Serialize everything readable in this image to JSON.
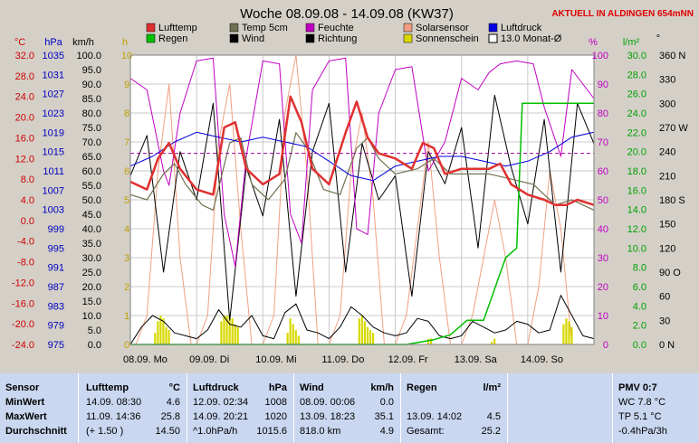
{
  "title": "Woche 08.09.08 - 14.09.08 (KW37)",
  "status": "AKTUELL IN ALDINGEN 654mNN",
  "colors": {
    "lufttemp": "#e03030",
    "temp5cm": "#707050",
    "feuchte": "#c000c0",
    "solar": "#f0a080",
    "luftdruck": "#0000e0",
    "regen": "#00c000",
    "wind": "#000000",
    "richtung": "#000000",
    "sonne": "#d8d800",
    "monat": "#a000a0"
  },
  "legend": [
    {
      "label": "Lufttemp",
      "color": "#e03030",
      "kind": "box"
    },
    {
      "label": "Temp 5cm",
      "color": "#707050",
      "kind": "box"
    },
    {
      "label": "Feuchte",
      "color": "#c000c0",
      "kind": "box"
    },
    {
      "label": "Solarsensor",
      "color": "#f0a080",
      "kind": "box"
    },
    {
      "label": "Luftdruck",
      "color": "#0000e0",
      "kind": "box"
    },
    {
      "label": "Regen",
      "color": "#00c000",
      "kind": "box"
    },
    {
      "label": "Wind",
      "color": "#000000",
      "kind": "box"
    },
    {
      "label": "Richtung",
      "color": "#000000",
      "kind": "box"
    },
    {
      "label": "Sonnenschein",
      "color": "#d8d800",
      "kind": "box"
    },
    {
      "label": "13.0 Monat-Ø",
      "color": "#000000",
      "kind": "outline"
    }
  ],
  "axes": {
    "temp": {
      "unit": "°C",
      "color": "#d00000",
      "ticks": [
        "32.0",
        "28.0",
        "24.0",
        "20.0",
        "16.0",
        "12.0",
        "8.0",
        "4.0",
        "0.0",
        "-4.0",
        "-8.0",
        "-12.0",
        "-16.0",
        "-20.0",
        "-24.0"
      ]
    },
    "pressure": {
      "unit": "hPa",
      "color": "#0000c0",
      "ticks": [
        "1035",
        "1031",
        "1027",
        "1023",
        "1019",
        "1015",
        "1011",
        "1007",
        "1003",
        "999",
        "995",
        "991",
        "987",
        "983",
        "979",
        "975"
      ]
    },
    "wind": {
      "unit": "km/h",
      "color": "#000000",
      "ticks": [
        "100.0",
        "95.0",
        "90.0",
        "85.0",
        "80.0",
        "75.0",
        "70.0",
        "65.0",
        "60.0",
        "55.0",
        "50.0",
        "45.0",
        "40.0",
        "35.0",
        "30.0",
        "25.0",
        "20.0",
        "15.0",
        "10.0",
        "5.0",
        "0.0"
      ]
    },
    "sun": {
      "unit": "h",
      "color": "#c0a000",
      "ticks": [
        "10",
        "9",
        "8",
        "7",
        "6",
        "5",
        "4",
        "3",
        "2",
        "1",
        "0"
      ]
    },
    "humidity": {
      "unit": "%",
      "color": "#c000c0",
      "ticks": [
        "100",
        "90",
        "80",
        "70",
        "60",
        "50",
        "40",
        "30",
        "20",
        "10",
        "0"
      ]
    },
    "rain": {
      "unit": "l/m²",
      "color": "#00a000",
      "ticks": [
        "30.0",
        "28.0",
        "26.0",
        "24.0",
        "22.0",
        "20.0",
        "18.0",
        "16.0",
        "14.0",
        "12.0",
        "10.0",
        "8.0",
        "6.0",
        "4.0",
        "2.0",
        "0.0"
      ]
    },
    "direction": {
      "unit": "°",
      "color": "#000000",
      "ticks": [
        "360 N",
        "330",
        "300",
        "270 W",
        "240",
        "210",
        "180 S",
        "150",
        "120",
        "90 O",
        "60",
        "30",
        "0 N"
      ]
    }
  },
  "days": [
    "08.09. Mo",
    "09.09. Di",
    "10.09. Mi",
    "11.09. Do",
    "12.09. Fr",
    "13.09. Sa",
    "14.09. So"
  ],
  "chart_data": {
    "type": "line",
    "title": "Woche 08.09.08 - 14.09.08 (KW37)",
    "x_unit": "hours since 08.09. 00:00",
    "xlim": [
      0,
      168
    ],
    "series": [
      {
        "name": "Lufttemp",
        "axis": "temp",
        "x": [
          0,
          6,
          10,
          14,
          18,
          24,
          30,
          34,
          38,
          42,
          48,
          54,
          58,
          62,
          66,
          72,
          78,
          82,
          86,
          90,
          96,
          102,
          106,
          110,
          114,
          120,
          126,
          130,
          134,
          138,
          144,
          150,
          154,
          158,
          162,
          168
        ],
        "values": [
          7.5,
          6,
          12,
          15,
          10,
          6,
          5,
          18,
          19,
          10,
          7,
          9,
          24,
          19,
          10,
          7,
          17,
          23,
          16,
          13,
          12,
          10,
          15,
          14,
          9,
          10,
          10,
          10,
          11,
          7,
          5,
          4,
          3,
          3,
          4,
          3
        ]
      },
      {
        "name": "Temp 5cm",
        "axis": "temp",
        "x": [
          0,
          6,
          12,
          16,
          20,
          26,
          30,
          36,
          40,
          44,
          50,
          56,
          60,
          64,
          70,
          76,
          82,
          86,
          90,
          96,
          104,
          110,
          116,
          122,
          130,
          138,
          146,
          154,
          160,
          168
        ],
        "values": [
          5,
          4,
          9,
          11,
          7,
          3,
          2,
          15,
          16,
          7,
          4,
          8,
          17,
          14,
          6,
          5,
          14,
          16,
          12,
          9,
          10,
          12,
          9,
          9,
          9,
          8,
          7,
          3,
          4,
          2
        ]
      },
      {
        "name": "Feuchte",
        "axis": "humidity",
        "x": [
          0,
          6,
          12,
          14,
          18,
          24,
          30,
          34,
          38,
          42,
          48,
          54,
          58,
          62,
          66,
          72,
          78,
          82,
          86,
          90,
          96,
          102,
          108,
          114,
          120,
          126,
          130,
          134,
          140,
          146,
          150,
          156,
          160,
          164,
          168
        ],
        "values": [
          92,
          88,
          60,
          55,
          80,
          98,
          99,
          45,
          27,
          65,
          98,
          97,
          45,
          35,
          88,
          98,
          99,
          40,
          38,
          80,
          95,
          96,
          60,
          70,
          92,
          88,
          94,
          97,
          98,
          97,
          82,
          65,
          95,
          90,
          85
        ]
      },
      {
        "name": "Solarsensor",
        "axis": "sun",
        "x": [
          0,
          2,
          6,
          10,
          14,
          18,
          22,
          24,
          28,
          32,
          36,
          40,
          44,
          48,
          52,
          56,
          60,
          64,
          68,
          72,
          76,
          80,
          84,
          88,
          92,
          96,
          100,
          104,
          108,
          112,
          116,
          120,
          124,
          128,
          132,
          136,
          140,
          144,
          148,
          152,
          156,
          160,
          164,
          168
        ],
        "values": [
          0,
          0,
          1,
          6,
          9,
          3,
          0,
          0,
          1,
          7,
          9,
          4,
          0,
          0,
          1,
          8,
          10,
          6,
          0,
          0,
          1,
          6,
          8,
          5,
          0,
          0,
          1,
          4,
          7,
          3,
          0,
          0,
          1,
          3,
          5,
          3,
          0,
          0,
          2,
          6,
          4,
          0,
          0,
          0
        ]
      },
      {
        "name": "Luftdruck",
        "axis": "pressure",
        "x": [
          0,
          8,
          16,
          24,
          32,
          40,
          48,
          56,
          64,
          72,
          80,
          88,
          96,
          104,
          112,
          120,
          128,
          136,
          144,
          152,
          160,
          168
        ],
        "values": [
          1012,
          1014,
          1017,
          1019,
          1018,
          1017,
          1018,
          1017,
          1016,
          1013,
          1010,
          1009,
          1012,
          1013,
          1014,
          1014,
          1013,
          1012,
          1013,
          1015,
          1018,
          1019
        ]
      },
      {
        "name": "Regen",
        "axis": "rain",
        "x": [
          0,
          60,
          100,
          110,
          116,
          122,
          124,
          128,
          136,
          140,
          142,
          168
        ],
        "values": [
          0,
          0,
          0,
          0.5,
          1.0,
          2.5,
          2.5,
          2.5,
          9,
          10,
          25,
          25
        ]
      },
      {
        "name": "Wind",
        "axis": "wind",
        "x": [
          0,
          4,
          8,
          12,
          16,
          20,
          24,
          28,
          32,
          36,
          40,
          44,
          48,
          52,
          56,
          60,
          64,
          68,
          72,
          76,
          80,
          84,
          88,
          92,
          96,
          100,
          104,
          108,
          112,
          116,
          120,
          124,
          128,
          132,
          136,
          140,
          144,
          148,
          152,
          156,
          160,
          164,
          168
        ],
        "values": [
          0,
          6,
          10,
          8,
          4,
          3,
          2,
          5,
          12,
          7,
          6,
          10,
          3,
          2,
          11,
          14,
          5,
          4,
          2,
          6,
          13,
          10,
          6,
          4,
          3,
          4,
          9,
          8,
          3,
          2,
          3,
          8,
          6,
          4,
          5,
          8,
          7,
          4,
          5,
          17,
          10,
          3,
          2
        ]
      },
      {
        "name": "Richtung",
        "axis": "direction",
        "x": [
          0,
          6,
          12,
          18,
          24,
          30,
          36,
          42,
          48,
          54,
          60,
          66,
          72,
          78,
          84,
          90,
          96,
          102,
          108,
          114,
          120,
          126,
          132,
          138,
          144,
          150,
          156,
          162,
          168
        ],
        "values": [
          210,
          260,
          90,
          240,
          180,
          300,
          30,
          220,
          160,
          280,
          60,
          240,
          300,
          90,
          250,
          180,
          210,
          60,
          240,
          200,
          270,
          120,
          310,
          220,
          150,
          280,
          90,
          300,
          250
        ]
      },
      {
        "name": "Sonnenschein",
        "axis": "sun",
        "type": "bar",
        "x": [
          9,
          10,
          11,
          12,
          13,
          14,
          33,
          34,
          35,
          36,
          37,
          38,
          39,
          57,
          58,
          59,
          60,
          61,
          83,
          84,
          85,
          86,
          87,
          88,
          108,
          109,
          131,
          132,
          157,
          158,
          159,
          160
        ],
        "values": [
          0.4,
          0.8,
          1.0,
          0.9,
          0.6,
          0.5,
          0.8,
          1.0,
          1.0,
          1.0,
          0.9,
          0.7,
          0.6,
          0.4,
          0.9,
          0.7,
          0.5,
          0.3,
          0.9,
          1.0,
          0.8,
          0.6,
          0.5,
          0.4,
          0.2,
          0.2,
          0.1,
          0.2,
          0.7,
          0.9,
          0.8,
          0.6
        ]
      },
      {
        "name": "13.0 Monat-Ø",
        "axis": "temp",
        "type": "hline",
        "values": [
          13
        ]
      }
    ]
  },
  "table": {
    "rows": [
      "Sensor",
      "MinWert",
      "MaxWert",
      "Durchschnitt"
    ],
    "sensor_col": [
      "Sensor",
      "MinWert",
      "MaxWert",
      "Durchschnitt"
    ],
    "lufttemp": {
      "header": "Lufttemp",
      "unit": "°C",
      "min_time": "14.09.  08:30",
      "min_val": "4.6",
      "max_time": "11.09.  14:36",
      "max_val": "25.8",
      "avg_note": "(+ 1.50 )",
      "avg_val": "14.50"
    },
    "luftdruck": {
      "header": "Luftdruck",
      "unit": "hPa",
      "min_time": "12.09.  02:34",
      "min_val": "1008",
      "max_time": "14.09.  20:21",
      "max_val": "1020",
      "avg_note": "^1.0hPa/h",
      "avg_val": "1015.6"
    },
    "wind": {
      "header": "Wind",
      "unit": "km/h",
      "min_time": "08.09.  00:06",
      "min_val": "0.0",
      "max_time": "13.09.  18:23",
      "max_val": "35.1",
      "avg_note": "818.0 km",
      "avg_val": "4.9"
    },
    "regen": {
      "header": "Regen",
      "unit": "l/m²",
      "max_time": "13.09.  14:02",
      "max_val": "4.5",
      "avg_note": "Gesamt:",
      "avg_val": "25.2"
    },
    "pmv": {
      "header": "PMV 0:7",
      "l1": "WC 7.8 °C",
      "l2": "TP 5.1 °C",
      "l3": "-0.4hPa/3h"
    }
  }
}
